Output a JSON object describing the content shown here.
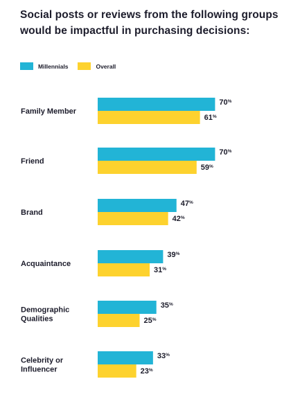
{
  "title": "Social posts or reviews from the following groups would be impactful in purchasing decisions:",
  "colors": {
    "millennials": "#22b4d6",
    "overall": "#fdd22e"
  },
  "chart_data": {
    "type": "bar",
    "orientation": "horizontal",
    "title": "Social posts or reviews from the following groups would be impactful in purchasing decisions:",
    "legend_position": "top-left",
    "grid": false,
    "xlim": [
      0,
      100
    ],
    "value_suffix": "%",
    "categories": [
      [
        "Family Member"
      ],
      [
        "Friend"
      ],
      [
        "Brand"
      ],
      [
        "Acquaintance"
      ],
      [
        "Demographic",
        "Qualities"
      ],
      [
        "Celebrity or",
        "Influencer"
      ]
    ],
    "series": [
      {
        "name": "Millennials",
        "color": "#22b4d6",
        "values": [
          70,
          70,
          47,
          39,
          35,
          33
        ]
      },
      {
        "name": "Overall",
        "color": "#fdd22e",
        "values": [
          61,
          59,
          42,
          31,
          25,
          23
        ]
      }
    ]
  }
}
